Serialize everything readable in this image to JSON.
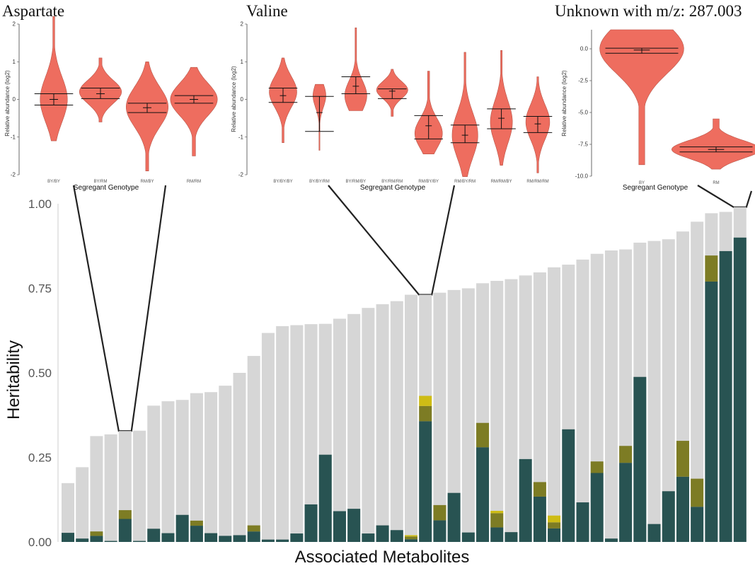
{
  "colors": {
    "total": "#d6d6d6",
    "dark": "#285352",
    "olive": "#7d7c24",
    "yellow": "#cebc15",
    "violin": "#ee6d5f",
    "violin_stroke": "#b85548",
    "connector": "#222222"
  },
  "chart_data": [
    {
      "type": "bar",
      "id": "main",
      "xlabel": "Associated Metabolites",
      "ylabel": "Heritability",
      "ylim": [
        0,
        1
      ],
      "yticks": [
        "0.00",
        "0.25",
        "0.50",
        "0.75",
        "1.00"
      ],
      "grid": false,
      "series": [
        {
          "values": [
            0.174,
            0.221,
            0.313,
            0.318,
            0.328,
            0.329,
            0.403,
            0.416,
            0.42,
            0.44,
            0.443,
            0.462,
            0.5,
            0.55,
            0.618,
            0.638,
            0.641,
            0.644,
            0.645,
            0.66,
            0.674,
            0.692,
            0.703,
            0.712,
            0.731,
            0.731,
            0.737,
            0.745,
            0.75,
            0.765,
            0.772,
            0.777,
            0.788,
            0.797,
            0.812,
            0.82,
            0.835,
            0.852,
            0.862,
            0.865,
            0.885,
            0.89,
            0.895,
            0.918,
            0.947,
            0.972,
            0.976,
            0.99
          ]
        },
        {
          "values": [
            0.027,
            0.01,
            0.018,
            0.003,
            0.068,
            0.003,
            0.039,
            0.026,
            0.08,
            0.048,
            0.026,
            0.018,
            0.02,
            0.031,
            0.007,
            0.007,
            0.025,
            0.111,
            0.258,
            0.091,
            0.098,
            0.025,
            0.049,
            0.035,
            0.008,
            0.357,
            0.064,
            0.145,
            0.028,
            0.28,
            0.043,
            0.029,
            0.245,
            0.134,
            0.04,
            0.333,
            0.117,
            0.204,
            0.01,
            0.234,
            0.488,
            0.053,
            0.15,
            0.193,
            0.104,
            0.77,
            0.86,
            0.9
          ]
        },
        {
          "values": [
            0,
            0,
            0.013,
            0,
            0.026,
            0,
            0,
            0,
            0,
            0.015,
            0,
            0,
            0,
            0.018,
            0,
            0,
            0,
            0,
            0,
            0,
            0,
            0,
            0,
            0,
            0.008,
            0.045,
            0.045,
            0,
            0,
            0.072,
            0.042,
            0,
            0,
            0.043,
            0.018,
            0,
            0,
            0.034,
            0,
            0.05,
            0,
            0,
            0,
            0.106,
            0.083,
            0.077,
            0,
            0
          ]
        },
        {
          "values": [
            0,
            0,
            0,
            0,
            0,
            0,
            0,
            0,
            0,
            0,
            0,
            0,
            0,
            0,
            0,
            0,
            0,
            0,
            0,
            0,
            0,
            0,
            0,
            0,
            0.004,
            0.03,
            0,
            0,
            0,
            0,
            0.007,
            0,
            0,
            0,
            0.02,
            0,
            0,
            0,
            0,
            0,
            0,
            0,
            0,
            0,
            0,
            0,
            0,
            0
          ]
        }
      ]
    },
    {
      "type": "violin",
      "id": "aspartate",
      "title": "Aspartate",
      "ylabel": "Relative abundance (log2)",
      "xlabel": "Segregant Genotype",
      "ylim": [
        -2,
        2
      ],
      "yticks": [
        "-2",
        "-1",
        "0",
        "1",
        "2"
      ],
      "categories": [
        "BY/BY",
        "BY/RM",
        "RM/BY",
        "RM/RM"
      ],
      "violins": [
        {
          "min": -1.1,
          "max": 2.2,
          "mean": 0.0,
          "lower": -0.15,
          "upper": 0.15,
          "width": 0.55,
          "mode": 0.0
        },
        {
          "min": -0.6,
          "max": 1.1,
          "mean": 0.15,
          "lower": 0.02,
          "upper": 0.3,
          "width": 0.85,
          "mode": 0.2
        },
        {
          "min": -1.9,
          "max": 1.0,
          "mean": -0.22,
          "lower": -0.35,
          "upper": -0.1,
          "width": 0.85,
          "mode": -0.2
        },
        {
          "min": -1.5,
          "max": 0.85,
          "mean": 0.0,
          "lower": -0.1,
          "upper": 0.1,
          "width": 0.95,
          "mode": 0.0
        }
      ]
    },
    {
      "type": "violin",
      "id": "valine",
      "title": "Valine",
      "ylabel": "Relative abundance (log2)",
      "xlabel": "Segregant Genotype",
      "ylim": [
        -2,
        2
      ],
      "yticks": [
        "-2",
        "-1",
        "0",
        "1",
        "2"
      ],
      "categories": [
        "BY/BY/BY",
        "BY/BY/RM",
        "BY/RM/BY",
        "BY/RM/RM",
        "RM/BY/BY",
        "RM/BY/RM",
        "RM/RM/BY",
        "RM/RM/RM"
      ],
      "violins": [
        {
          "min": -1.15,
          "max": 1.1,
          "mean": 0.1,
          "lower": -0.08,
          "upper": 0.3,
          "width": 0.75,
          "mode": 0.2
        },
        {
          "min": -1.35,
          "max": 0.4,
          "mean": -0.35,
          "lower": -0.85,
          "upper": 0.08,
          "width": 0.35,
          "mode": 0.1
        },
        {
          "min": -0.3,
          "max": 1.9,
          "mean": 0.35,
          "lower": 0.15,
          "upper": 0.6,
          "width": 0.6,
          "mode": 0.1
        },
        {
          "min": -0.45,
          "max": 0.8,
          "mean": 0.22,
          "lower": 0.02,
          "upper": 0.28,
          "width": 0.85,
          "mode": 0.25
        },
        {
          "min": -1.45,
          "max": 0.75,
          "mean": -0.7,
          "lower": -1.05,
          "upper": -0.43,
          "width": 0.75,
          "mode": -0.9
        },
        {
          "min": -2.05,
          "max": 1.25,
          "mean": -0.95,
          "lower": -1.15,
          "upper": -0.68,
          "width": 0.7,
          "mode": -0.95
        },
        {
          "min": -1.75,
          "max": 1.3,
          "mean": -0.5,
          "lower": -0.78,
          "upper": -0.25,
          "width": 0.6,
          "mode": -0.6
        },
        {
          "min": -1.95,
          "max": 0.6,
          "mean": -0.65,
          "lower": -0.88,
          "upper": -0.45,
          "width": 0.65,
          "mode": -0.6
        }
      ]
    },
    {
      "type": "violin",
      "id": "unknown",
      "title": "Unknown with m/z: 287.003",
      "ylabel": "Relative abundance (log2)",
      "xlabel": "Segregant Genotype",
      "ylim": [
        -10,
        1.5
      ],
      "yticks": [
        "-10.0",
        "-7.5",
        "-5.0",
        "-2.5",
        "0.0"
      ],
      "categories": [
        "BY",
        "RM"
      ],
      "violins": [
        {
          "min": -9.1,
          "max": 1.5,
          "mean": -0.1,
          "lower": -0.35,
          "upper": 0.05,
          "width": 0.9,
          "mode": 0.0
        },
        {
          "min": -9.45,
          "max": -5.5,
          "mean": -7.9,
          "lower": -8.1,
          "upper": -7.7,
          "width": 0.95,
          "mode": -7.9
        }
      ]
    }
  ]
}
